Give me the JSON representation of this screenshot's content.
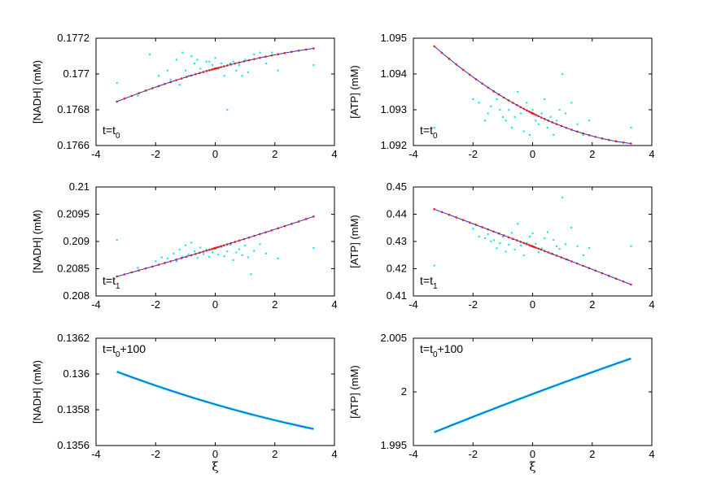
{
  "chart_data": [
    {
      "type": "scatter",
      "ylabel": "[NADH] (mM)",
      "xlabel": "",
      "annotation": {
        "base": "t=t",
        "sub": "0",
        "suffix": ""
      },
      "xlim": [
        -4,
        4
      ],
      "ylim": [
        0.1766,
        0.1772
      ],
      "xticks": [
        "-4",
        "-2",
        "0",
        "2",
        "4"
      ],
      "yticks": [
        "0.1766",
        "0.1768",
        "0.177",
        "0.1772"
      ],
      "colors": {
        "scatter": "#22e6e6",
        "fit": "#2b2bd6",
        "fit_points": "#e01f1f"
      },
      "fit": {
        "x0": -3.3,
        "x1": 3.3,
        "a": 0.17703,
        "b": 4.51e-05,
        "c": -3.3e-06
      },
      "scatter": [
        [
          -3.3,
          0.17695
        ],
        [
          -2.6,
          0.17688
        ],
        [
          -2.2,
          0.17711
        ],
        [
          -1.9,
          0.17699
        ],
        [
          -1.6,
          0.17702
        ],
        [
          -1.5,
          0.17697
        ],
        [
          -1.3,
          0.17708
        ],
        [
          -1.2,
          0.17694
        ],
        [
          -1.1,
          0.17712
        ],
        [
          -1.0,
          0.17702
        ],
        [
          -0.9,
          0.17699
        ],
        [
          -0.8,
          0.1771
        ],
        [
          -0.7,
          0.17706
        ],
        [
          -0.6,
          0.17708
        ],
        [
          -0.5,
          0.17703
        ],
        [
          -0.4,
          0.17701
        ],
        [
          -0.3,
          0.17707
        ],
        [
          -0.2,
          0.17707
        ],
        [
          -0.1,
          0.17705
        ],
        [
          0.0,
          0.17709
        ],
        [
          0.1,
          0.17703
        ],
        [
          0.2,
          0.17706
        ],
        [
          0.3,
          0.17699
        ],
        [
          0.4,
          0.1768
        ],
        [
          0.5,
          0.17706
        ],
        [
          0.6,
          0.17707
        ],
        [
          0.7,
          0.17702
        ],
        [
          0.8,
          0.17705
        ],
        [
          0.9,
          0.17699
        ],
        [
          1.0,
          0.17708
        ],
        [
          1.1,
          0.17701
        ],
        [
          1.3,
          0.17711
        ],
        [
          1.5,
          0.17712
        ],
        [
          1.7,
          0.17706
        ],
        [
          1.9,
          0.17712
        ],
        [
          2.1,
          0.17702
        ],
        [
          3.3,
          0.17705
        ]
      ]
    },
    {
      "type": "scatter",
      "ylabel": "[ATP] (mM)",
      "xlabel": "",
      "annotation": {
        "base": "t=t",
        "sub": "0",
        "suffix": ""
      },
      "xlim": [
        -4,
        4
      ],
      "ylim": [
        1.092,
        1.095
      ],
      "xticks": [
        "-4",
        "-2",
        "0",
        "2",
        "4"
      ],
      "yticks": [
        "1.092",
        "1.093",
        "1.094",
        "1.095"
      ],
      "colors": {
        "scatter": "#22e6e6",
        "fit": "#2b2bd6",
        "fit_points": "#e01f1f"
      },
      "fit": {
        "x0": -3.3,
        "x1": 3.3,
        "a": 1.0929,
        "b": -0.000412,
        "c": 4.73e-05
      },
      "scatter": [
        [
          -3.3,
          1.0925
        ],
        [
          -2.0,
          1.0933
        ],
        [
          -1.8,
          1.0932
        ],
        [
          -1.6,
          1.0927
        ],
        [
          -1.5,
          1.0929
        ],
        [
          -1.4,
          1.0931
        ],
        [
          -1.3,
          1.0935
        ],
        [
          -1.2,
          1.0933
        ],
        [
          -1.1,
          1.093
        ],
        [
          -1.0,
          1.0928
        ],
        [
          -0.9,
          1.0927
        ],
        [
          -0.8,
          1.093
        ],
        [
          -0.7,
          1.0925
        ],
        [
          -0.6,
          1.0928
        ],
        [
          -0.5,
          1.0935
        ],
        [
          -0.4,
          1.0929
        ],
        [
          -0.3,
          1.0924
        ],
        [
          -0.2,
          1.0932
        ],
        [
          -0.1,
          1.0923
        ],
        [
          0.0,
          1.093
        ],
        [
          0.1,
          1.0927
        ],
        [
          0.2,
          1.0926
        ],
        [
          0.3,
          1.0929
        ],
        [
          0.4,
          1.0933
        ],
        [
          0.5,
          1.0925
        ],
        [
          0.6,
          1.0928
        ],
        [
          0.7,
          1.0923
        ],
        [
          0.8,
          1.0927
        ],
        [
          0.9,
          1.093
        ],
        [
          1.0,
          1.094
        ],
        [
          1.1,
          1.0929
        ],
        [
          1.3,
          1.0932
        ],
        [
          1.5,
          1.0926
        ],
        [
          1.7,
          1.0923
        ],
        [
          1.9,
          1.0927
        ],
        [
          3.3,
          1.0925
        ]
      ]
    },
    {
      "type": "scatter",
      "ylabel": "[NADH] (mM)",
      "xlabel": "",
      "annotation": {
        "base": "t=t",
        "sub": "1",
        "suffix": ""
      },
      "xlim": [
        -4,
        4
      ],
      "ylim": [
        0.208,
        0.21
      ],
      "xticks": [
        "-4",
        "-2",
        "0",
        "2",
        "4"
      ],
      "yticks": [
        "0.208",
        "0.2085",
        "0.209",
        "0.2095",
        "0.21"
      ],
      "colors": {
        "scatter": "#22e6e6",
        "fit": "#2b2bd6",
        "fit_points": "#e01f1f"
      },
      "fit": {
        "x0": -3.3,
        "x1": 3.3,
        "a": 0.20888,
        "b": 0.0001667,
        "c": 2.5e-06
      },
      "scatter": [
        [
          -3.3,
          0.20903
        ],
        [
          -2.6,
          0.20852
        ],
        [
          -2.0,
          0.20864
        ],
        [
          -1.8,
          0.20871
        ],
        [
          -1.6,
          0.20869
        ],
        [
          -1.4,
          0.20878
        ],
        [
          -1.3,
          0.20864
        ],
        [
          -1.2,
          0.20885
        ],
        [
          -1.1,
          0.20872
        ],
        [
          -1.0,
          0.20893
        ],
        [
          -0.9,
          0.20876
        ],
        [
          -0.8,
          0.20898
        ],
        [
          -0.7,
          0.20882
        ],
        [
          -0.6,
          0.2087
        ],
        [
          -0.5,
          0.20889
        ],
        [
          -0.4,
          0.20877
        ],
        [
          -0.3,
          0.20885
        ],
        [
          -0.2,
          0.20872
        ],
        [
          -0.1,
          0.2088
        ],
        [
          0.0,
          0.20887
        ],
        [
          0.1,
          0.20876
        ],
        [
          0.2,
          0.2089
        ],
        [
          0.3,
          0.20873
        ],
        [
          0.4,
          0.20882
        ],
        [
          0.5,
          0.20894
        ],
        [
          0.6,
          0.20866
        ],
        [
          0.7,
          0.2088
        ],
        [
          0.8,
          0.20886
        ],
        [
          0.9,
          0.20875
        ],
        [
          1.0,
          0.20893
        ],
        [
          1.1,
          0.20871
        ],
        [
          1.2,
          0.2084
        ],
        [
          1.3,
          0.20883
        ],
        [
          1.5,
          0.20895
        ],
        [
          1.7,
          0.20878
        ],
        [
          2.1,
          0.20869
        ],
        [
          3.3,
          0.20888
        ]
      ]
    },
    {
      "type": "scatter",
      "ylabel": "[ATP] (mM)",
      "xlabel": "",
      "annotation": {
        "base": "t=t",
        "sub": "1",
        "suffix": ""
      },
      "xlim": [
        -4,
        4
      ],
      "ylim": [
        0.41,
        0.45
      ],
      "xticks": [
        "-4",
        "-2",
        "0",
        "2",
        "4"
      ],
      "yticks": [
        "0.41",
        "0.42",
        "0.43",
        "0.44",
        "0.45"
      ],
      "colors": {
        "scatter": "#22e6e6",
        "fit": "#2b2bd6",
        "fit_points": "#e01f1f"
      },
      "fit": {
        "x0": -3.3,
        "x1": 3.3,
        "a": 0.4282,
        "b": -0.00419,
        "c": -1.65e-05
      },
      "scatter": [
        [
          -3.3,
          0.4212
        ],
        [
          -2.0,
          0.4347
        ],
        [
          -1.8,
          0.4318
        ],
        [
          -1.6,
          0.4312
        ],
        [
          -1.5,
          0.4327
        ],
        [
          -1.4,
          0.4301
        ],
        [
          -1.3,
          0.4305
        ],
        [
          -1.2,
          0.4275
        ],
        [
          -1.1,
          0.4294
        ],
        [
          -1.0,
          0.4318
        ],
        [
          -0.9,
          0.4263
        ],
        [
          -0.8,
          0.4289
        ],
        [
          -0.7,
          0.4332
        ],
        [
          -0.6,
          0.4271
        ],
        [
          -0.5,
          0.4365
        ],
        [
          -0.4,
          0.4286
        ],
        [
          -0.3,
          0.4249
        ],
        [
          -0.2,
          0.4294
        ],
        [
          -0.1,
          0.4318
        ],
        [
          0.0,
          0.433
        ],
        [
          0.1,
          0.4292
        ],
        [
          0.2,
          0.4261
        ],
        [
          0.3,
          0.4275
        ],
        [
          0.4,
          0.4312
        ],
        [
          0.5,
          0.4335
        ],
        [
          0.6,
          0.4256
        ],
        [
          0.7,
          0.4306
        ],
        [
          0.8,
          0.4283
        ],
        [
          0.9,
          0.4273
        ],
        [
          1.0,
          0.4462
        ],
        [
          1.1,
          0.429
        ],
        [
          1.2,
          0.4232
        ],
        [
          1.3,
          0.4351
        ],
        [
          1.5,
          0.4283
        ],
        [
          1.7,
          0.425
        ],
        [
          1.9,
          0.4276
        ],
        [
          3.3,
          0.4283
        ]
      ]
    },
    {
      "type": "line",
      "ylabel": "[NADH] (mM)",
      "xlabel": "ξ",
      "annotation": {
        "base": "t=t",
        "sub": "0",
        "suffix": "+100"
      },
      "xlim": [
        -4,
        4
      ],
      "ylim": [
        0.1356,
        0.1362
      ],
      "xticks": [
        "-4",
        "-2",
        "0",
        "2",
        "4"
      ],
      "yticks": [
        "0.1356",
        "0.1358",
        "0.136",
        "0.1362"
      ],
      "colors": {
        "scatter": "#22e6e6",
        "fit": "#2b2bd6",
        "fit_points": "#e01f1f"
      },
      "fit": {
        "x0": -3.3,
        "x1": 3.3,
        "a": 0.13583,
        "b": -4.85e-05,
        "c": 2.1e-06
      },
      "scatter": []
    },
    {
      "type": "line",
      "ylabel": "[ATP] (mM)",
      "xlabel": "ξ",
      "annotation": {
        "base": "t=t",
        "sub": "0",
        "suffix": "+100"
      },
      "xlim": [
        -4,
        4
      ],
      "ylim": [
        1.995,
        2.005
      ],
      "xticks": [
        "-4",
        "-2",
        "0",
        "2",
        "4"
      ],
      "yticks": [
        "1.995",
        "2",
        "2.005"
      ],
      "colors": {
        "scatter": "#22e6e6",
        "fit": "#2b2bd6",
        "fit_points": "#e01f1f"
      },
      "fit": {
        "x0": -3.3,
        "x1": 3.3,
        "a": 1.9998,
        "b": 0.00104,
        "c": -1.16e-05
      },
      "scatter": []
    }
  ]
}
